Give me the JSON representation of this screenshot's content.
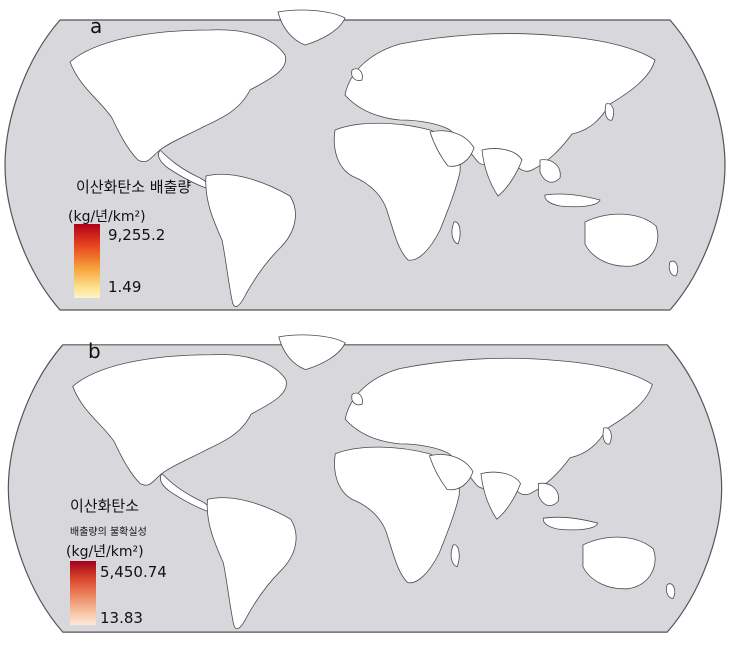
{
  "panel_a": {
    "letter": "a",
    "legend": {
      "title": "이산화탄소 배출량",
      "unit": "(kg/년/km²)",
      "max_label": "9,255.2",
      "min_label": "1.49",
      "color_max": "#b2001a",
      "color_min": "#fff3c4"
    }
  },
  "panel_b": {
    "letter": "b",
    "legend": {
      "title": "이산화탄소",
      "subtitle": "배출량의 불확실성",
      "unit": "(kg/년/km²)",
      "max_label": "5,450.74",
      "min_label": "13.83",
      "color_max": "#a3001a",
      "color_min": "#fde9da"
    }
  },
  "colors": {
    "ocean": "#d8d8dc",
    "land": "#ffffff",
    "coast": "#4a4a4a"
  }
}
